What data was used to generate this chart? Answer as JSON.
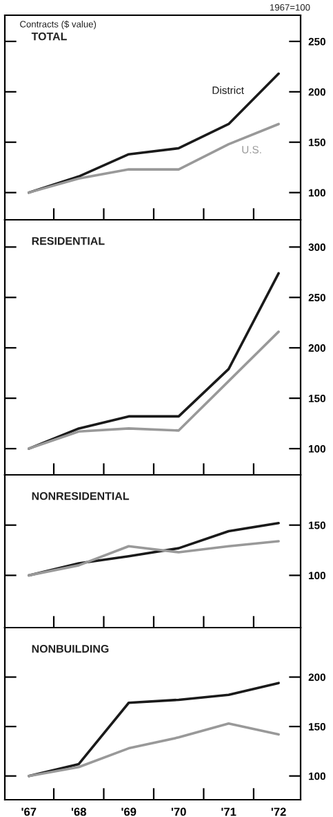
{
  "chart_data": [
    {
      "type": "line",
      "title": "TOTAL",
      "annotations": [
        "1967=100",
        "Contracts ($ value)"
      ],
      "categories": [
        null,
        null,
        null,
        null,
        null,
        null
      ],
      "series": [
        {
          "name": "District",
          "color": "#1a1a1a",
          "values": [
            100,
            116,
            138,
            144,
            168,
            218
          ]
        },
        {
          "name": "U.S.",
          "color": "#999999",
          "values": [
            100,
            114,
            123,
            123,
            148,
            168
          ]
        }
      ],
      "ylim": [
        73,
        276
      ],
      "yticks": [
        100,
        150,
        200,
        250
      ],
      "tick_labels": "y"
    },
    {
      "type": "line",
      "title": "RESIDENTIAL",
      "categories": [
        null,
        null,
        null,
        null,
        null,
        null
      ],
      "series": [
        {
          "color": "#1a1a1a",
          "values": [
            100,
            120,
            132,
            132,
            179,
            274
          ]
        },
        {
          "color": "#999999",
          "values": [
            100,
            117,
            120,
            118,
            167,
            216
          ]
        }
      ],
      "ylim": [
        74,
        327
      ],
      "yticks": [
        100,
        150,
        200,
        250,
        300
      ],
      "tick_labels": "y"
    },
    {
      "type": "line",
      "title": "NONRESIDENTIAL",
      "categories": [
        null,
        null,
        null,
        null,
        null,
        null
      ],
      "series": [
        {
          "color": "#1a1a1a",
          "values": [
            100,
            112,
            119,
            127,
            144,
            152
          ]
        },
        {
          "color": "#999999",
          "values": [
            100,
            110,
            129,
            123,
            129,
            134
          ]
        }
      ],
      "ylim": [
        48,
        200
      ],
      "yticks": [
        100,
        150
      ],
      "tick_labels": "y"
    },
    {
      "type": "line",
      "title": "NONBUILDING",
      "categories": [
        "'67",
        "'68",
        "'69",
        "'70",
        "'71",
        "'72"
      ],
      "series": [
        {
          "color": "#1a1a1a",
          "values": [
            100,
            112,
            174,
            177,
            182,
            194
          ]
        },
        {
          "color": "#999999",
          "values": [
            100,
            109,
            128,
            139,
            153,
            142
          ]
        }
      ],
      "ylim": [
        76,
        250
      ],
      "yticks": [
        100,
        150,
        200
      ]
    }
  ]
}
